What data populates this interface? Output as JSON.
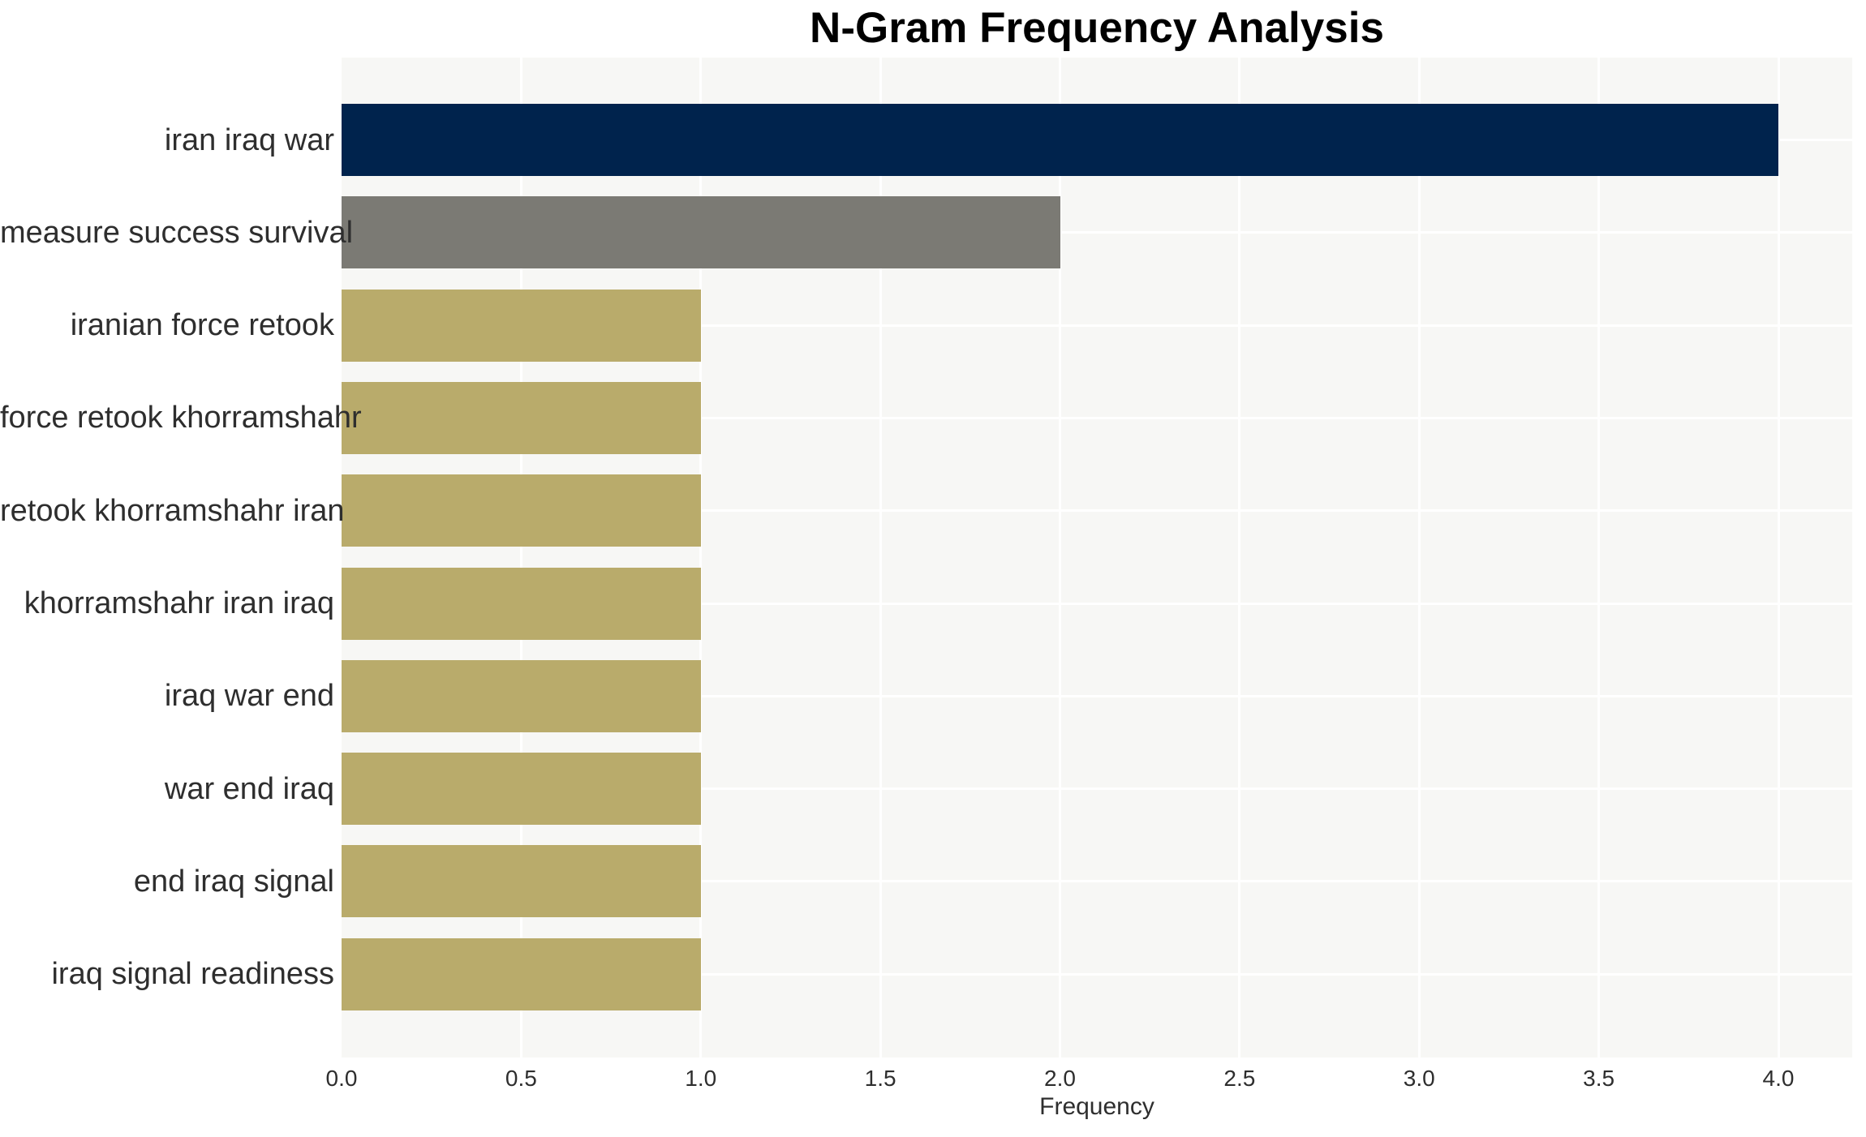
{
  "chart_data": {
    "type": "bar",
    "orientation": "horizontal",
    "title": "N-Gram Frequency Analysis",
    "xlabel": "Frequency",
    "ylabel": "",
    "categories": [
      "iran iraq war",
      "measure success survival",
      "iranian force retook",
      "force retook khorramshahr",
      "retook khorramshahr iran",
      "khorramshahr iran iraq",
      "iraq war end",
      "war end iraq",
      "end iraq signal",
      "iraq signal readiness"
    ],
    "values": [
      4,
      2,
      1,
      1,
      1,
      1,
      1,
      1,
      1,
      1
    ],
    "bar_colors": [
      "#00234d",
      "#7b7a74",
      "#b9ab6b",
      "#b9ab6b",
      "#b9ab6b",
      "#b9ab6b",
      "#b9ab6b",
      "#b9ab6b",
      "#b9ab6b",
      "#b9ab6b"
    ],
    "xticks": [
      0,
      0.5,
      1,
      1.5,
      2,
      2.5,
      3,
      3.5,
      4
    ],
    "xtick_labels": [
      "0.0",
      "0.5",
      "1.0",
      "1.5",
      "2.0",
      "2.5",
      "3.0",
      "3.5",
      "4.0"
    ],
    "xlim": [
      0,
      4.2
    ],
    "grid": true,
    "legend": false,
    "plot_bg": "#f7f7f5",
    "grid_color": "#ffffff",
    "text_color": "#2e2e2e",
    "title_color": "#000000"
  }
}
